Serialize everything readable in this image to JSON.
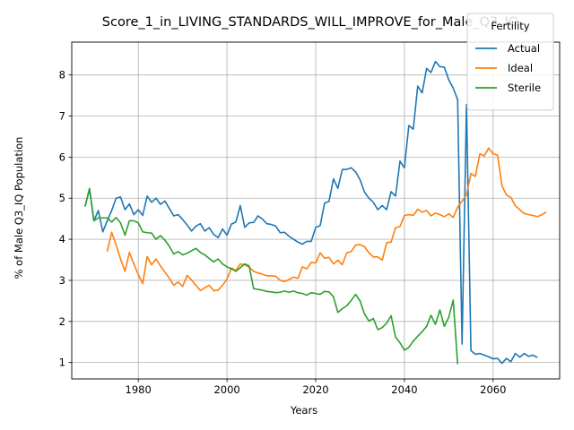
{
  "chart_data": {
    "type": "line",
    "title": "Score_1_in_LIVING_STANDARDS_WILL_IMPROVE_for_Male_Q3_IQ",
    "xlabel": "Years",
    "ylabel": "% of Male Q3_IQ Population",
    "xlim": [
      1965,
      2075
    ],
    "ylim": [
      0.6,
      8.8
    ],
    "xticks": [
      1980,
      2000,
      2020,
      2040,
      2060
    ],
    "yticks": [
      1,
      2,
      3,
      4,
      5,
      6,
      7,
      8
    ],
    "grid": true,
    "legend": {
      "title": "Fertility",
      "position": "top-right"
    },
    "series": [
      {
        "name": "Actual",
        "color": "#1f77b4",
        "points": [
          [
            1968,
            4.8
          ],
          [
            1969,
            5.22
          ],
          [
            1970,
            4.45
          ],
          [
            1971,
            4.7
          ],
          [
            1972,
            4.18
          ],
          [
            1973,
            4.45
          ],
          [
            1974,
            4.7
          ],
          [
            1975,
            5.0
          ],
          [
            1976,
            5.03
          ],
          [
            1977,
            4.72
          ],
          [
            1978,
            4.86
          ],
          [
            1979,
            4.6
          ],
          [
            1980,
            4.72
          ],
          [
            1981,
            4.58
          ],
          [
            1982,
            5.05
          ],
          [
            1983,
            4.9
          ],
          [
            1984,
            5.0
          ],
          [
            1985,
            4.85
          ],
          [
            1986,
            4.93
          ],
          [
            1987,
            4.75
          ],
          [
            1988,
            4.57
          ],
          [
            1989,
            4.6
          ],
          [
            1990,
            4.48
          ],
          [
            1991,
            4.35
          ],
          [
            1992,
            4.2
          ],
          [
            1993,
            4.32
          ],
          [
            1994,
            4.38
          ],
          [
            1995,
            4.2
          ],
          [
            1996,
            4.28
          ],
          [
            1997,
            4.12
          ],
          [
            1998,
            4.04
          ],
          [
            1999,
            4.25
          ],
          [
            2000,
            4.1
          ],
          [
            2001,
            4.37
          ],
          [
            2002,
            4.42
          ],
          [
            2003,
            4.82
          ],
          [
            2004,
            4.29
          ],
          [
            2005,
            4.4
          ],
          [
            2006,
            4.41
          ],
          [
            2007,
            4.57
          ],
          [
            2008,
            4.49
          ],
          [
            2009,
            4.38
          ],
          [
            2010,
            4.36
          ],
          [
            2011,
            4.32
          ],
          [
            2012,
            4.16
          ],
          [
            2013,
            4.17
          ],
          [
            2014,
            4.07
          ],
          [
            2015,
            4.0
          ],
          [
            2016,
            3.93
          ],
          [
            2017,
            3.88
          ],
          [
            2018,
            3.95
          ],
          [
            2019,
            3.95
          ],
          [
            2020,
            4.29
          ],
          [
            2021,
            4.33
          ],
          [
            2022,
            4.88
          ],
          [
            2023,
            4.92
          ],
          [
            2024,
            5.47
          ],
          [
            2025,
            5.24
          ],
          [
            2026,
            5.7
          ],
          [
            2027,
            5.7
          ],
          [
            2028,
            5.74
          ],
          [
            2029,
            5.64
          ],
          [
            2030,
            5.45
          ],
          [
            2031,
            5.15
          ],
          [
            2032,
            5.0
          ],
          [
            2033,
            4.9
          ],
          [
            2034,
            4.72
          ],
          [
            2035,
            4.82
          ],
          [
            2036,
            4.72
          ],
          [
            2037,
            5.16
          ],
          [
            2038,
            5.05
          ],
          [
            2039,
            5.9
          ],
          [
            2040,
            5.74
          ],
          [
            2041,
            6.77
          ],
          [
            2042,
            6.68
          ],
          [
            2043,
            7.73
          ],
          [
            2044,
            7.56
          ],
          [
            2045,
            8.16
          ],
          [
            2046,
            8.06
          ],
          [
            2047,
            8.33
          ],
          [
            2048,
            8.2
          ],
          [
            2049,
            8.19
          ],
          [
            2050,
            7.88
          ],
          [
            2051,
            7.68
          ],
          [
            2052,
            7.4
          ],
          [
            2053,
            1.45
          ],
          [
            2054,
            7.28
          ],
          [
            2055,
            1.29
          ],
          [
            2056,
            1.2
          ],
          [
            2057,
            1.22
          ],
          [
            2058,
            1.18
          ],
          [
            2059,
            1.14
          ],
          [
            2060,
            1.09
          ],
          [
            2061,
            1.1
          ],
          [
            2062,
            0.98
          ],
          [
            2063,
            1.1
          ],
          [
            2064,
            1.02
          ],
          [
            2065,
            1.22
          ],
          [
            2066,
            1.13
          ],
          [
            2067,
            1.22
          ],
          [
            2068,
            1.15
          ],
          [
            2069,
            1.18
          ],
          [
            2070,
            1.12
          ]
        ]
      },
      {
        "name": "Ideal",
        "color": "#ff7f0e",
        "points": [
          [
            1973,
            3.7
          ],
          [
            1974,
            4.17
          ],
          [
            1975,
            3.86
          ],
          [
            1976,
            3.52
          ],
          [
            1977,
            3.22
          ],
          [
            1978,
            3.68
          ],
          [
            1979,
            3.4
          ],
          [
            1980,
            3.14
          ],
          [
            1981,
            2.92
          ],
          [
            1982,
            3.58
          ],
          [
            1983,
            3.38
          ],
          [
            1984,
            3.52
          ],
          [
            1985,
            3.35
          ],
          [
            1986,
            3.2
          ],
          [
            1987,
            3.05
          ],
          [
            1988,
            2.88
          ],
          [
            1989,
            2.96
          ],
          [
            1990,
            2.85
          ],
          [
            1991,
            3.12
          ],
          [
            1992,
            3.01
          ],
          [
            1993,
            2.88
          ],
          [
            1994,
            2.75
          ],
          [
            1995,
            2.82
          ],
          [
            1996,
            2.88
          ],
          [
            1997,
            2.75
          ],
          [
            1998,
            2.76
          ],
          [
            1999,
            2.88
          ],
          [
            2000,
            3.03
          ],
          [
            2001,
            3.3
          ],
          [
            2002,
            3.24
          ],
          [
            2003,
            3.4
          ],
          [
            2004,
            3.38
          ],
          [
            2005,
            3.32
          ],
          [
            2006,
            3.22
          ],
          [
            2007,
            3.18
          ],
          [
            2008,
            3.15
          ],
          [
            2009,
            3.11
          ],
          [
            2010,
            3.11
          ],
          [
            2011,
            3.1
          ],
          [
            2012,
            3.0
          ],
          [
            2013,
            2.97
          ],
          [
            2014,
            3.02
          ],
          [
            2015,
            3.08
          ],
          [
            2016,
            3.05
          ],
          [
            2017,
            3.33
          ],
          [
            2018,
            3.28
          ],
          [
            2019,
            3.44
          ],
          [
            2020,
            3.42
          ],
          [
            2021,
            3.67
          ],
          [
            2022,
            3.54
          ],
          [
            2023,
            3.56
          ],
          [
            2024,
            3.4
          ],
          [
            2025,
            3.49
          ],
          [
            2026,
            3.38
          ],
          [
            2027,
            3.67
          ],
          [
            2028,
            3.7
          ],
          [
            2029,
            3.86
          ],
          [
            2030,
            3.87
          ],
          [
            2031,
            3.82
          ],
          [
            2032,
            3.67
          ],
          [
            2033,
            3.57
          ],
          [
            2034,
            3.57
          ],
          [
            2035,
            3.49
          ],
          [
            2036,
            3.92
          ],
          [
            2037,
            3.93
          ],
          [
            2038,
            4.28
          ],
          [
            2039,
            4.31
          ],
          [
            2040,
            4.58
          ],
          [
            2041,
            4.6
          ],
          [
            2042,
            4.58
          ],
          [
            2043,
            4.73
          ],
          [
            2044,
            4.66
          ],
          [
            2045,
            4.7
          ],
          [
            2046,
            4.57
          ],
          [
            2047,
            4.64
          ],
          [
            2048,
            4.6
          ],
          [
            2049,
            4.55
          ],
          [
            2050,
            4.62
          ],
          [
            2051,
            4.53
          ],
          [
            2052,
            4.78
          ],
          [
            2053,
            4.93
          ],
          [
            2054,
            5.08
          ],
          [
            2055,
            5.6
          ],
          [
            2056,
            5.53
          ],
          [
            2057,
            6.08
          ],
          [
            2058,
            6.03
          ],
          [
            2059,
            6.22
          ],
          [
            2060,
            6.08
          ],
          [
            2061,
            6.05
          ],
          [
            2062,
            5.3
          ],
          [
            2063,
            5.08
          ],
          [
            2064,
            5.02
          ],
          [
            2065,
            4.82
          ],
          [
            2066,
            4.72
          ],
          [
            2067,
            4.63
          ],
          [
            2068,
            4.6
          ],
          [
            2069,
            4.58
          ],
          [
            2070,
            4.55
          ],
          [
            2071,
            4.6
          ],
          [
            2072,
            4.66
          ]
        ]
      },
      {
        "name": "Sterile",
        "color": "#2ca02c",
        "points": [
          [
            1968,
            4.8
          ],
          [
            1969,
            5.24
          ],
          [
            1970,
            4.45
          ],
          [
            1971,
            4.52
          ],
          [
            1972,
            4.52
          ],
          [
            1973,
            4.52
          ],
          [
            1974,
            4.42
          ],
          [
            1975,
            4.53
          ],
          [
            1976,
            4.4
          ],
          [
            1977,
            4.1
          ],
          [
            1978,
            4.45
          ],
          [
            1979,
            4.45
          ],
          [
            1980,
            4.4
          ],
          [
            1981,
            4.18
          ],
          [
            1982,
            4.16
          ],
          [
            1983,
            4.15
          ],
          [
            1984,
            4.0
          ],
          [
            1985,
            4.09
          ],
          [
            1986,
            3.98
          ],
          [
            1987,
            3.83
          ],
          [
            1988,
            3.64
          ],
          [
            1989,
            3.7
          ],
          [
            1990,
            3.62
          ],
          [
            1991,
            3.66
          ],
          [
            1992,
            3.72
          ],
          [
            1993,
            3.78
          ],
          [
            1994,
            3.68
          ],
          [
            1995,
            3.62
          ],
          [
            1996,
            3.53
          ],
          [
            1997,
            3.45
          ],
          [
            1998,
            3.52
          ],
          [
            1999,
            3.4
          ],
          [
            2000,
            3.33
          ],
          [
            2001,
            3.28
          ],
          [
            2002,
            3.22
          ],
          [
            2003,
            3.31
          ],
          [
            2004,
            3.4
          ],
          [
            2005,
            3.35
          ],
          [
            2006,
            2.8
          ],
          [
            2007,
            2.78
          ],
          [
            2008,
            2.76
          ],
          [
            2009,
            2.73
          ],
          [
            2010,
            2.72
          ],
          [
            2011,
            2.7
          ],
          [
            2012,
            2.71
          ],
          [
            2013,
            2.74
          ],
          [
            2014,
            2.71
          ],
          [
            2015,
            2.74
          ],
          [
            2016,
            2.7
          ],
          [
            2017,
            2.68
          ],
          [
            2018,
            2.64
          ],
          [
            2019,
            2.7
          ],
          [
            2020,
            2.68
          ],
          [
            2021,
            2.66
          ],
          [
            2022,
            2.73
          ],
          [
            2023,
            2.72
          ],
          [
            2024,
            2.6
          ],
          [
            2025,
            2.22
          ],
          [
            2026,
            2.31
          ],
          [
            2027,
            2.38
          ],
          [
            2028,
            2.51
          ],
          [
            2029,
            2.66
          ],
          [
            2030,
            2.5
          ],
          [
            2031,
            2.18
          ],
          [
            2032,
            2.01
          ],
          [
            2033,
            2.07
          ],
          [
            2034,
            1.8
          ],
          [
            2035,
            1.85
          ],
          [
            2036,
            1.96
          ],
          [
            2037,
            2.14
          ],
          [
            2038,
            1.62
          ],
          [
            2039,
            1.48
          ],
          [
            2040,
            1.3
          ],
          [
            2041,
            1.37
          ],
          [
            2042,
            1.52
          ],
          [
            2043,
            1.64
          ],
          [
            2044,
            1.75
          ],
          [
            2045,
            1.88
          ],
          [
            2046,
            2.15
          ],
          [
            2047,
            1.93
          ],
          [
            2048,
            2.28
          ],
          [
            2049,
            1.88
          ],
          [
            2050,
            2.1
          ],
          [
            2051,
            2.52
          ],
          [
            2052,
            0.96
          ]
        ]
      }
    ]
  }
}
